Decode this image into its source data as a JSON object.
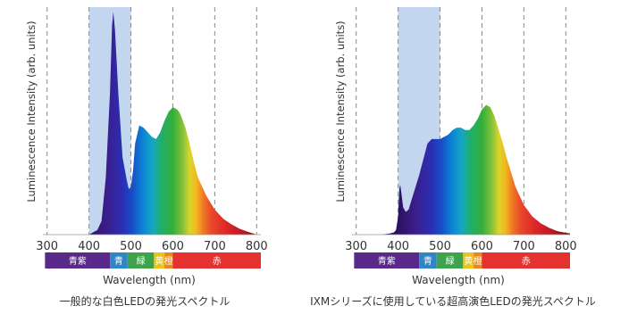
{
  "chart_data": [
    {
      "type": "area",
      "title": "一般的な白色LEDの発光スペクトル",
      "xlabel": "Wavelength (nm)",
      "ylabel": "Luminescence Intensity (arb. units)",
      "xlim": [
        290,
        810
      ],
      "ylim": [
        0,
        1
      ],
      "xticks": [
        300,
        400,
        500,
        600,
        700,
        800
      ],
      "grid": "vertical dashed lines at ticks",
      "highlight_band": [
        400,
        500
      ],
      "color_bar": [
        {
          "label": "青紫",
          "from": 295,
          "to": 450,
          "color": "#5a2a8a"
        },
        {
          "label": "青",
          "from": 450,
          "to": 492,
          "color": "#2f86c7"
        },
        {
          "label": "緑",
          "from": 492,
          "to": 555,
          "color": "#3fa34d"
        },
        {
          "label": "黄",
          "from": 555,
          "to": 580,
          "color": "#e7c51a"
        },
        {
          "label": "橙",
          "from": 580,
          "to": 600,
          "color": "#e58a1e"
        },
        {
          "label": "赤",
          "from": 600,
          "to": 810,
          "color": "#e5312f"
        }
      ],
      "series": [
        {
          "x": [
            400,
            420,
            430,
            440,
            450,
            455,
            458,
            462,
            470,
            480,
            490,
            495,
            500,
            505,
            510,
            520,
            530,
            540,
            550,
            560,
            570,
            580,
            590,
            600,
            610,
            615,
            620,
            630,
            640,
            650,
            660,
            680,
            700,
            720,
            740,
            760,
            780,
            800
          ],
          "y": [
            0.0,
            0.02,
            0.06,
            0.25,
            0.62,
            0.92,
            0.98,
            0.9,
            0.62,
            0.34,
            0.24,
            0.2,
            0.21,
            0.28,
            0.4,
            0.48,
            0.47,
            0.45,
            0.43,
            0.42,
            0.45,
            0.5,
            0.54,
            0.56,
            0.55,
            0.54,
            0.52,
            0.47,
            0.4,
            0.32,
            0.25,
            0.17,
            0.11,
            0.07,
            0.045,
            0.025,
            0.012,
            0.0
          ]
        }
      ]
    },
    {
      "type": "area",
      "title": "IXMシリーズに使用している超高演色LEDの発光スペクトル",
      "xlabel": "Wavelength (nm)",
      "ylabel": "Luminescence Intensity (arb. units)",
      "xlim": [
        290,
        810
      ],
      "ylim": [
        0,
        1
      ],
      "xticks": [
        300,
        400,
        500,
        600,
        700,
        800
      ],
      "grid": "vertical dashed lines at ticks",
      "highlight_band": [
        400,
        500
      ],
      "color_bar": [
        {
          "label": "青紫",
          "from": 295,
          "to": 450,
          "color": "#5a2a8a"
        },
        {
          "label": "青",
          "from": 450,
          "to": 492,
          "color": "#2f86c7"
        },
        {
          "label": "緑",
          "from": 492,
          "to": 555,
          "color": "#3fa34d"
        },
        {
          "label": "黄",
          "from": 555,
          "to": 580,
          "color": "#e7c51a"
        },
        {
          "label": "橙",
          "from": 580,
          "to": 600,
          "color": "#e58a1e"
        },
        {
          "label": "赤",
          "from": 600,
          "to": 810,
          "color": "#e5312f"
        }
      ],
      "series": [
        {
          "x": [
            360,
            380,
            390,
            395,
            400,
            403,
            405,
            408,
            412,
            418,
            425,
            430,
            440,
            450,
            460,
            470,
            480,
            490,
            500,
            510,
            520,
            530,
            540,
            550,
            560,
            570,
            580,
            590,
            600,
            610,
            620,
            630,
            640,
            650,
            660,
            670,
            680,
            700,
            720,
            740,
            760,
            780,
            800,
            820,
            840
          ],
          "y": [
            0.0,
            0.005,
            0.01,
            0.02,
            0.08,
            0.2,
            0.22,
            0.18,
            0.12,
            0.1,
            0.11,
            0.14,
            0.2,
            0.26,
            0.33,
            0.4,
            0.42,
            0.42,
            0.42,
            0.43,
            0.44,
            0.46,
            0.47,
            0.47,
            0.46,
            0.46,
            0.48,
            0.51,
            0.55,
            0.57,
            0.56,
            0.52,
            0.46,
            0.4,
            0.33,
            0.27,
            0.21,
            0.13,
            0.08,
            0.05,
            0.03,
            0.015,
            0.008,
            0.003,
            0.0
          ]
        }
      ]
    }
  ]
}
